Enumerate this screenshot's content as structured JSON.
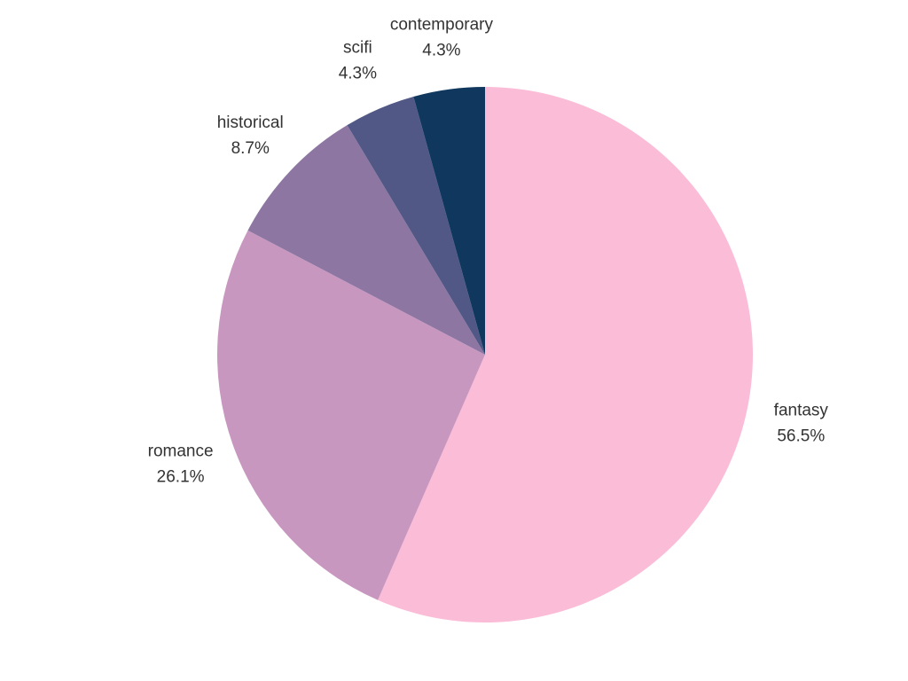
{
  "chart_data": {
    "type": "pie",
    "title": "",
    "slices": [
      {
        "label": "fantasy",
        "percent_text": "56.5%",
        "value": 56.5,
        "color": "#FBBCD7"
      },
      {
        "label": "romance",
        "percent_text": "26.1%",
        "value": 26.1,
        "color": "#C897C0"
      },
      {
        "label": "historical",
        "percent_text": "8.7%",
        "value": 8.7,
        "color": "#8D76A2"
      },
      {
        "label": "scifi",
        "percent_text": "4.3%",
        "value": 4.3,
        "color": "#525885"
      },
      {
        "label": "contemporary",
        "percent_text": "4.3%",
        "value": 4.3,
        "color": "#10385E"
      }
    ],
    "legend": "none",
    "grid": false,
    "start_angle": "12 o'clock",
    "direction": "clockwise"
  }
}
